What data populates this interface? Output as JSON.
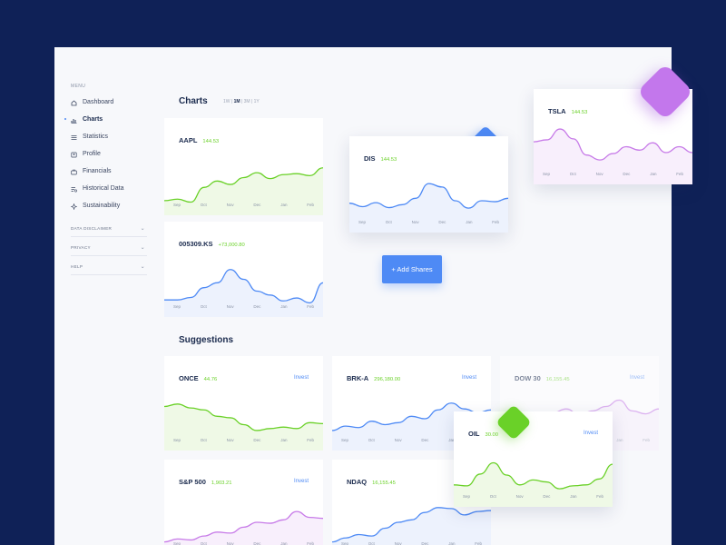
{
  "sidebar": {
    "menu_label": "MENU",
    "items": [
      {
        "label": "Dashboard",
        "icon": "home-icon"
      },
      {
        "label": "Charts",
        "icon": "bar-chart-icon",
        "active": true
      },
      {
        "label": "Statistics",
        "icon": "list-icon"
      },
      {
        "label": "Profile",
        "icon": "user-icon"
      },
      {
        "label": "Financials",
        "icon": "briefcase-icon"
      },
      {
        "label": "Historical Data",
        "icon": "history-icon"
      },
      {
        "label": "Sustainability",
        "icon": "sparkle-icon"
      }
    ],
    "sections": [
      {
        "label": "DATA DISCLAIMER"
      },
      {
        "label": "PRIVACY"
      },
      {
        "label": "HELP"
      }
    ]
  },
  "charts": {
    "title": "Charts",
    "time_options": [
      "1W",
      "1M",
      "3M",
      "1Y"
    ],
    "selected_time": "1M"
  },
  "suggestions": {
    "title": "Suggestions"
  },
  "add_shares_label": "+ Add Shares",
  "invest_label": "Invest",
  "months": [
    "Sep",
    "Oct",
    "Nov",
    "Dec",
    "Jan",
    "Feb"
  ],
  "colors": {
    "green": "#6ad128",
    "blue": "#4e8af5",
    "purple": "#c77be8",
    "navy": "#0f2157"
  },
  "cards": {
    "aapl": {
      "name": "AAPL",
      "price": "144.53"
    },
    "ks": {
      "name": "005309.KS",
      "price": "+73,000.80"
    },
    "dis": {
      "name": "DIS",
      "price": "144.53"
    },
    "tsla": {
      "name": "TSLA",
      "price": "144.53"
    },
    "once": {
      "name": "ONCE",
      "price": "44.76"
    },
    "brk": {
      "name": "BRK-A",
      "price": "296,180.00"
    },
    "dow": {
      "name": "DOW 30",
      "price": "16,155.45"
    },
    "oil": {
      "name": "OIL",
      "price": "30.00"
    },
    "sp": {
      "name": "S&P 500",
      "price": "1,903.21"
    },
    "ndaq": {
      "name": "NDAQ",
      "price": "16,155.45"
    }
  }
}
